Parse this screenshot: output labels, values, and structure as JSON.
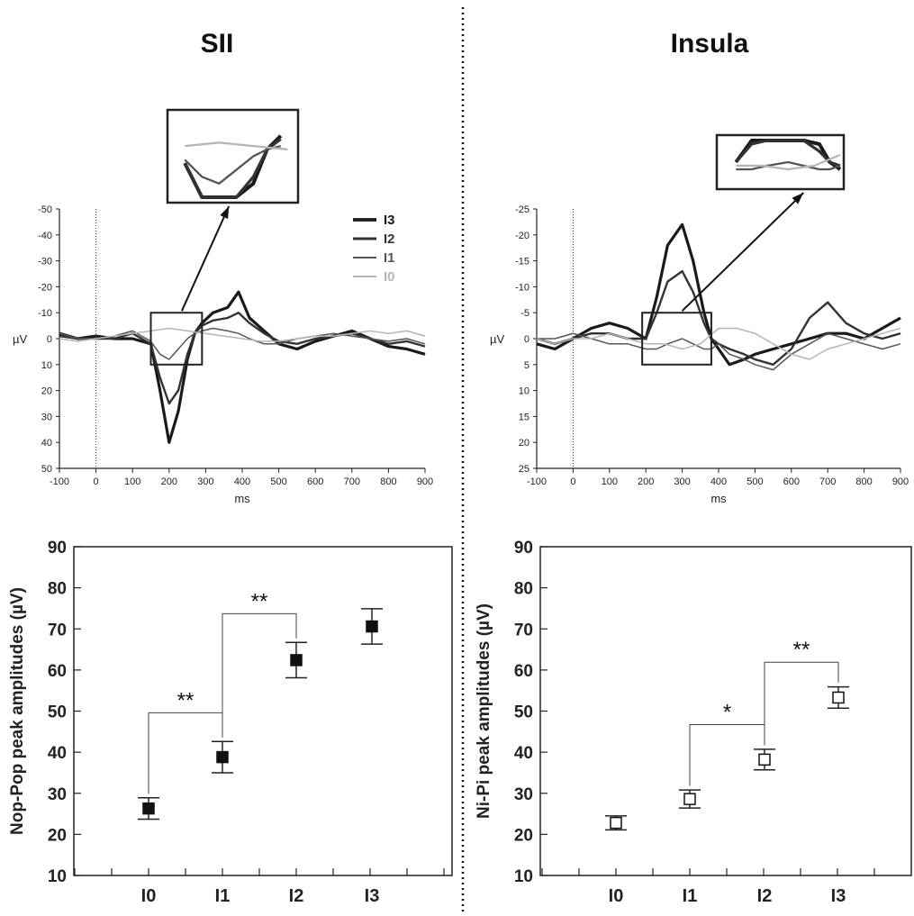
{
  "panels": {
    "left_title": "SII",
    "right_title": "Insula"
  },
  "chart_data": [
    {
      "type": "line",
      "panel": "SII",
      "xlabel": "ms",
      "ylabel": "µV",
      "xlim": [
        -100,
        900
      ],
      "ylim": [
        50,
        -50
      ],
      "y_axis_inverted": true,
      "xticks": [
        -100,
        0,
        100,
        200,
        300,
        400,
        500,
        600,
        700,
        800,
        900
      ],
      "yticks": [
        -50,
        -40,
        -30,
        -20,
        -10,
        0,
        10,
        20,
        30,
        40,
        50
      ],
      "legend": [
        "I3",
        "I2",
        "I1",
        "I0"
      ],
      "legend_position": "top-right",
      "annotations": [
        "inset zoom of 150–290 ms window"
      ],
      "series": [
        {
          "name": "I3",
          "color": "#1a1a1a",
          "x": [
            -100,
            -50,
            0,
            50,
            100,
            150,
            175,
            200,
            225,
            250,
            270,
            290,
            320,
            360,
            390,
            420,
            460,
            500,
            550,
            600,
            650,
            700,
            750,
            800,
            850,
            900
          ],
          "y": [
            -2,
            0,
            -1,
            0,
            0,
            2,
            20,
            40,
            28,
            8,
            -2,
            -6,
            -10,
            -12,
            -18,
            -8,
            -3,
            2,
            4,
            1,
            -1,
            -3,
            0,
            3,
            4,
            6
          ]
        },
        {
          "name": "I2",
          "color": "#333333",
          "x": [
            -100,
            -50,
            0,
            50,
            100,
            150,
            175,
            200,
            225,
            250,
            270,
            290,
            320,
            360,
            390,
            420,
            460,
            500,
            550,
            600,
            650,
            700,
            750,
            800,
            850,
            900
          ],
          "y": [
            -1,
            0,
            0,
            0,
            -2,
            2,
            15,
            25,
            20,
            6,
            -2,
            -5,
            -7,
            -8,
            -10,
            -6,
            -2,
            1,
            2,
            0,
            -1,
            -2,
            0,
            2,
            1,
            3
          ]
        },
        {
          "name": "I1",
          "color": "#555555",
          "x": [
            -100,
            -50,
            0,
            50,
            100,
            150,
            175,
            200,
            225,
            250,
            270,
            290,
            320,
            360,
            390,
            420,
            460,
            500,
            550,
            600,
            650,
            700,
            750,
            800,
            850,
            900
          ],
          "y": [
            -2,
            0,
            0,
            -1,
            -3,
            1,
            6,
            8,
            4,
            0,
            -2,
            -3,
            -4,
            -3,
            -2,
            0,
            2,
            2,
            0,
            -1,
            -2,
            -1,
            0,
            1,
            0,
            2
          ]
        },
        {
          "name": "I0",
          "color": "#b5b5b5",
          "x": [
            -100,
            -50,
            0,
            50,
            100,
            150,
            200,
            250,
            300,
            350,
            400,
            450,
            500,
            550,
            600,
            650,
            700,
            750,
            800,
            850,
            900
          ],
          "y": [
            0,
            1,
            0,
            -1,
            -2,
            -3,
            -4,
            -3,
            -2,
            -1,
            0,
            1,
            1,
            0,
            -1,
            -1,
            -2,
            -3,
            -2,
            -3,
            -1
          ]
        }
      ]
    },
    {
      "type": "line",
      "panel": "Insula",
      "xlabel": "ms",
      "ylabel": "µV",
      "xlim": [
        -100,
        900
      ],
      "ylim": [
        25,
        -25
      ],
      "y_axis_inverted": true,
      "xticks": [
        -100,
        0,
        100,
        200,
        300,
        400,
        500,
        600,
        700,
        800,
        900
      ],
      "yticks": [
        -25,
        -20,
        -15,
        -10,
        -5,
        0,
        5,
        10,
        15,
        20,
        25
      ],
      "annotations": [
        "inset zoom of 190–380 ms window"
      ],
      "series": [
        {
          "name": "I3",
          "color": "#1a1a1a",
          "x": [
            -100,
            -50,
            0,
            50,
            100,
            150,
            200,
            230,
            260,
            300,
            330,
            360,
            380,
            400,
            430,
            470,
            500,
            550,
            600,
            650,
            700,
            750,
            800,
            850,
            900
          ],
          "y": [
            1,
            2,
            0,
            -2,
            -3,
            -2,
            0,
            -8,
            -18,
            -22,
            -15,
            -5,
            0,
            2,
            5,
            4,
            3,
            2,
            1,
            0,
            -1,
            -1,
            0,
            -2,
            -4
          ]
        },
        {
          "name": "I2",
          "color": "#333333",
          "x": [
            -100,
            -50,
            0,
            50,
            100,
            150,
            200,
            230,
            260,
            300,
            330,
            360,
            380,
            400,
            430,
            470,
            500,
            550,
            600,
            650,
            700,
            750,
            800,
            850,
            900
          ],
          "y": [
            0,
            1,
            0,
            -1,
            -1,
            0,
            0,
            -5,
            -11,
            -13,
            -9,
            -3,
            0,
            1,
            2,
            3,
            4,
            5,
            2,
            -4,
            -7,
            -3,
            -1,
            0,
            -1
          ]
        },
        {
          "name": "I1",
          "color": "#555555",
          "x": [
            -100,
            -50,
            0,
            50,
            100,
            150,
            200,
            230,
            260,
            300,
            330,
            360,
            380,
            400,
            430,
            470,
            500,
            550,
            600,
            650,
            700,
            750,
            800,
            850,
            900
          ],
          "y": [
            0,
            0,
            -1,
            0,
            1,
            1,
            2,
            2,
            1,
            0,
            1,
            2,
            2,
            1,
            3,
            4,
            5,
            6,
            3,
            1,
            -1,
            0,
            1,
            2,
            1
          ]
        },
        {
          "name": "I0",
          "color": "#b5b5b5",
          "x": [
            -100,
            -50,
            0,
            50,
            100,
            150,
            200,
            250,
            300,
            350,
            400,
            450,
            500,
            550,
            600,
            650,
            700,
            750,
            800,
            850,
            900
          ],
          "y": [
            0,
            1,
            0,
            0,
            -1,
            0,
            1,
            1,
            2,
            1,
            -2,
            -2,
            -1,
            1,
            3,
            4,
            2,
            1,
            0,
            -1,
            -2
          ]
        }
      ]
    },
    {
      "type": "scatter",
      "panel": "SII",
      "xlabel": "",
      "ylabel": "Nop-Pop peak amplitudes (µV)",
      "categories": [
        "I0",
        "I1",
        "I2",
        "I3"
      ],
      "ylim": [
        10,
        90
      ],
      "yticks": [
        10,
        20,
        30,
        40,
        50,
        60,
        70,
        80,
        90
      ],
      "marker": "filled-square",
      "series": [
        {
          "values": [
            26.3,
            38.8,
            62.4,
            70.6
          ],
          "errors": [
            2.6,
            3.8,
            4.3,
            4.3
          ]
        }
      ],
      "significance": [
        {
          "from": "I0",
          "to": "I1",
          "label": "**"
        },
        {
          "from": "I1",
          "to": "I2",
          "label": "**"
        }
      ]
    },
    {
      "type": "scatter",
      "panel": "Insula",
      "xlabel": "",
      "ylabel": "Ni-Pi peak amplitudes (µV)",
      "categories": [
        "I0",
        "I1",
        "I2",
        "I3"
      ],
      "ylim": [
        10,
        90
      ],
      "yticks": [
        10,
        20,
        30,
        40,
        50,
        60,
        70,
        80,
        90
      ],
      "marker": "open-square",
      "series": [
        {
          "values": [
            22.8,
            28.6,
            38.2,
            53.3
          ],
          "errors": [
            1.7,
            2.2,
            2.5,
            2.6
          ]
        }
      ],
      "significance": [
        {
          "from": "I1",
          "to": "I2",
          "label": "*"
        },
        {
          "from": "I2",
          "to": "I3",
          "label": "**"
        }
      ]
    }
  ]
}
